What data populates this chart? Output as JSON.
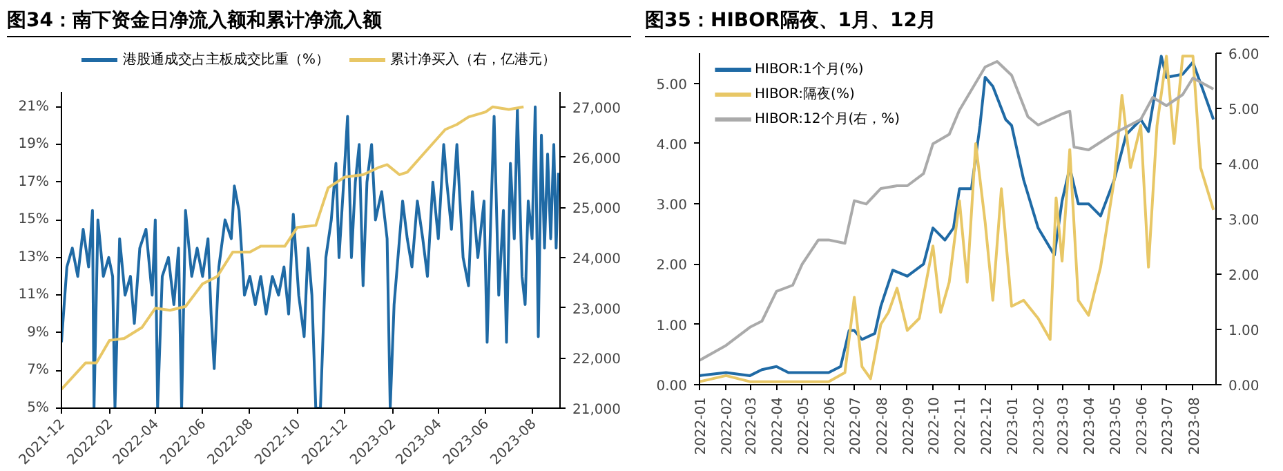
{
  "chart_data": [
    {
      "type": "line",
      "title": "图34：南下资金日净流入额和累计净流入额",
      "legend": "top",
      "grid": false,
      "xlim": [
        "2021-12-01",
        "2023-09-05"
      ],
      "xticks": [
        "2021-12",
        "2022-02",
        "2022-04",
        "2022-06",
        "2022-08",
        "2022-10",
        "2022-12",
        "2023-02",
        "2023-04",
        "2023-06",
        "2023-08"
      ],
      "ylim": [
        5,
        21.8
      ],
      "yticks": [
        {
          "value": 5,
          "label": "5%"
        },
        {
          "value": 7,
          "label": "7%"
        },
        {
          "value": 9,
          "label": "9%"
        },
        {
          "value": 11,
          "label": "11%"
        },
        {
          "value": 13,
          "label": "13%"
        },
        {
          "value": 15,
          "label": "15%"
        },
        {
          "value": 17,
          "label": "17%"
        },
        {
          "value": 19,
          "label": "19%"
        },
        {
          "value": 21,
          "label": "21%"
        }
      ],
      "y2lim": [
        21000,
        27300
      ],
      "y2ticks": [
        {
          "value": 21000,
          "label": "21,000"
        },
        {
          "value": 22000,
          "label": "22,000"
        },
        {
          "value": 23000,
          "label": "23,000"
        },
        {
          "value": 24000,
          "label": "24,000"
        },
        {
          "value": 25000,
          "label": "25,000"
        },
        {
          "value": 26000,
          "label": "26,000"
        },
        {
          "value": 27000,
          "label": "27,000"
        }
      ],
      "series": [
        {
          "name": "港股通成交占主板成交比重（%）",
          "color": "#1f6aa5",
          "x": [
            "2021-12-01",
            "2021-12-08",
            "2021-12-15",
            "2021-12-22",
            "2021-12-29",
            "2022-01-05",
            "2022-01-10",
            "2022-01-12",
            "2022-01-17",
            "2022-01-24",
            "2022-01-31",
            "2022-02-05",
            "2022-02-08",
            "2022-02-14",
            "2022-02-21",
            "2022-02-28",
            "2022-03-05",
            "2022-03-12",
            "2022-03-20",
            "2022-03-28",
            "2022-04-01",
            "2022-04-04",
            "2022-04-10",
            "2022-04-18",
            "2022-04-25",
            "2022-05-01",
            "2022-05-05",
            "2022-05-10",
            "2022-05-18",
            "2022-05-25",
            "2022-06-01",
            "2022-06-08",
            "2022-06-12",
            "2022-06-16",
            "2022-06-22",
            "2022-06-30",
            "2022-07-08",
            "2022-07-12",
            "2022-07-18",
            "2022-07-25",
            "2022-08-01",
            "2022-08-08",
            "2022-08-15",
            "2022-08-22",
            "2022-08-30",
            "2022-09-07",
            "2022-09-14",
            "2022-09-20",
            "2022-09-26",
            "2022-10-03",
            "2022-10-10",
            "2022-10-15",
            "2022-10-20",
            "2022-10-25",
            "2022-10-31",
            "2022-11-07",
            "2022-11-14",
            "2022-11-20",
            "2022-11-24",
            "2022-11-30",
            "2022-12-05",
            "2022-12-10",
            "2022-12-15",
            "2022-12-20",
            "2022-12-25",
            "2022-12-30",
            "2023-01-05",
            "2023-01-10",
            "2023-01-18",
            "2023-01-25",
            "2023-01-29",
            "2023-02-03",
            "2023-02-08",
            "2023-02-14",
            "2023-02-20",
            "2023-02-26",
            "2023-03-05",
            "2023-03-12",
            "2023-03-18",
            "2023-03-25",
            "2023-04-01",
            "2023-04-08",
            "2023-04-12",
            "2023-04-18",
            "2023-04-25",
            "2023-05-03",
            "2023-05-10",
            "2023-05-15",
            "2023-05-22",
            "2023-05-30",
            "2023-06-03",
            "2023-06-08",
            "2023-06-12",
            "2023-06-18",
            "2023-06-24",
            "2023-06-28",
            "2023-07-03",
            "2023-07-08",
            "2023-07-12",
            "2023-07-18",
            "2023-07-22",
            "2023-07-26",
            "2023-07-31",
            "2023-08-04",
            "2023-08-08",
            "2023-08-12",
            "2023-08-16",
            "2023-08-20",
            "2023-08-24",
            "2023-08-28",
            "2023-08-31",
            "2023-09-03"
          ],
          "values": [
            8.5,
            12.5,
            13.5,
            12,
            14.5,
            12.5,
            15.5,
            5,
            15,
            12,
            13,
            12,
            5,
            14,
            11,
            12,
            9.5,
            13.5,
            14.5,
            11,
            15,
            5,
            12,
            13,
            10.5,
            13.5,
            5,
            15.5,
            12,
            13.5,
            12,
            14,
            10,
            7.1,
            12.5,
            15,
            14,
            16.8,
            15.5,
            11,
            12,
            10.5,
            12,
            10,
            12,
            11,
            12.5,
            10,
            15.3,
            11,
            8.8,
            13.5,
            11,
            5,
            5,
            13,
            15,
            18,
            13,
            17,
            20.5,
            13,
            17,
            19,
            11.5,
            17,
            19,
            15,
            16.5,
            14,
            5,
            10.5,
            13,
            16,
            14,
            12.5,
            16,
            14,
            12,
            17,
            14,
            19,
            17,
            14.5,
            19,
            13,
            11.5,
            16.5,
            13,
            16,
            8.5,
            15.5,
            20.5,
            11,
            15.5,
            8.5,
            18,
            14,
            20.9,
            12,
            10.5,
            16,
            14,
            21,
            8.8,
            19.5,
            13.5,
            18.5,
            14,
            19,
            13.5,
            17.5
          ]
        },
        {
          "name": "累计净买入（右，亿港元）",
          "color": "#e8c766",
          "axis": "y2",
          "x": [
            "2021-12-01",
            "2022-01-01",
            "2022-01-15",
            "2022-02-01",
            "2022-02-20",
            "2022-03-15",
            "2022-04-01",
            "2022-04-20",
            "2022-05-10",
            "2022-06-01",
            "2022-06-20",
            "2022-07-10",
            "2022-08-01",
            "2022-08-15",
            "2022-09-15",
            "2022-10-01",
            "2022-10-25",
            "2022-11-10",
            "2022-12-01",
            "2022-12-25",
            "2023-01-15",
            "2023-01-25",
            "2023-02-10",
            "2023-02-20",
            "2023-03-15",
            "2023-04-10",
            "2023-04-25",
            "2023-05-10",
            "2023-06-01",
            "2023-06-10",
            "2023-07-01",
            "2023-07-20"
          ],
          "values": [
            21375,
            21900,
            21900,
            22350,
            22390,
            22610,
            22990,
            22950,
            23025,
            23475,
            23625,
            24110,
            24110,
            24225,
            24225,
            24600,
            24640,
            25390,
            25600,
            25650,
            25800,
            25850,
            25650,
            25700,
            26100,
            26550,
            26650,
            26800,
            26900,
            27000,
            26950,
            27000
          ]
        }
      ]
    },
    {
      "type": "line",
      "title": "图35：HIBOR隔夜、1月、12月",
      "legend": "top left",
      "grid": false,
      "xlim": [
        "2022-01-01",
        "2023-08-28"
      ],
      "xticks": [
        "2022-01",
        "2022-02",
        "2022-03",
        "2022-04",
        "2022-05",
        "2022-06",
        "2022-07",
        "2022-08",
        "2022-09",
        "2022-10",
        "2022-11",
        "2022-12",
        "2023-01",
        "2023-02",
        "2023-03",
        "2023-04",
        "2023-05",
        "2023-06",
        "2023-07",
        "2023-08"
      ],
      "ylim": [
        0,
        5.5
      ],
      "yticks": [
        {
          "value": 0,
          "label": "0.00"
        },
        {
          "value": 1,
          "label": "1.00"
        },
        {
          "value": 2,
          "label": "2.00"
        },
        {
          "value": 3,
          "label": "3.00"
        },
        {
          "value": 4,
          "label": "4.00"
        },
        {
          "value": 5,
          "label": "5.00"
        }
      ],
      "y2lim": [
        0,
        6
      ],
      "y2ticks": [
        {
          "value": 0,
          "label": "0.00"
        },
        {
          "value": 1,
          "label": "1.00"
        },
        {
          "value": 2,
          "label": "2.00"
        },
        {
          "value": 3,
          "label": "3.00"
        },
        {
          "value": 4,
          "label": "4.00"
        },
        {
          "value": 5,
          "label": "5.00"
        },
        {
          "value": 6,
          "label": "6.00"
        }
      ],
      "series": [
        {
          "name": "HIBOR:1个月(%)",
          "color": "#1f6aa5",
          "x": [
            "2022-01-01",
            "2022-02-01",
            "2022-03-01",
            "2022-03-15",
            "2022-04-01",
            "2022-04-15",
            "2022-05-01",
            "2022-06-01",
            "2022-06-15",
            "2022-06-25",
            "2022-07-01",
            "2022-07-10",
            "2022-07-25",
            "2022-08-01",
            "2022-08-15",
            "2022-09-01",
            "2022-09-20",
            "2022-10-01",
            "2022-10-15",
            "2022-10-25",
            "2022-11-01",
            "2022-11-15",
            "2022-11-25",
            "2022-12-01",
            "2022-12-10",
            "2022-12-25",
            "2023-01-01",
            "2023-01-15",
            "2023-02-01",
            "2023-02-20",
            "2023-03-01",
            "2023-03-10",
            "2023-03-20",
            "2023-04-01",
            "2023-04-15",
            "2023-05-01",
            "2023-05-15",
            "2023-06-01",
            "2023-06-10",
            "2023-06-25",
            "2023-07-01",
            "2023-07-20",
            "2023-08-01",
            "2023-08-15",
            "2023-08-25"
          ],
          "values": [
            0.15,
            0.2,
            0.15,
            0.25,
            0.3,
            0.2,
            0.2,
            0.2,
            0.3,
            0.9,
            0.9,
            0.75,
            0.85,
            1.3,
            1.9,
            1.8,
            2.0,
            2.6,
            2.4,
            2.6,
            3.25,
            3.25,
            4.3,
            5.1,
            4.95,
            4.4,
            4.3,
            3.4,
            2.6,
            2.15,
            3.05,
            3.6,
            3.0,
            3.0,
            2.8,
            3.4,
            4.15,
            4.4,
            4.2,
            5.45,
            5.1,
            5.15,
            5.35,
            4.8,
            4.4
          ]
        },
        {
          "name": "HIBOR:隔夜(%)",
          "color": "#e8c766",
          "x": [
            "2022-01-01",
            "2022-02-01",
            "2022-03-01",
            "2022-04-01",
            "2022-05-01",
            "2022-06-01",
            "2022-06-20",
            "2022-07-01",
            "2022-07-10",
            "2022-07-20",
            "2022-08-01",
            "2022-08-10",
            "2022-08-20",
            "2022-09-01",
            "2022-09-15",
            "2022-10-01",
            "2022-10-10",
            "2022-10-20",
            "2022-11-01",
            "2022-11-10",
            "2022-11-20",
            "2022-12-01",
            "2022-12-10",
            "2022-12-20",
            "2023-01-01",
            "2023-01-15",
            "2023-02-01",
            "2023-02-15",
            "2023-02-22",
            "2023-03-01",
            "2023-03-10",
            "2023-03-20",
            "2023-04-01",
            "2023-04-15",
            "2023-05-01",
            "2023-05-10",
            "2023-05-20",
            "2023-06-01",
            "2023-06-10",
            "2023-06-20",
            "2023-07-01",
            "2023-07-10",
            "2023-07-20",
            "2023-08-01",
            "2023-08-10",
            "2023-08-25"
          ],
          "values": [
            0.05,
            0.15,
            0.05,
            0.05,
            0.05,
            0.05,
            0.2,
            1.45,
            0.3,
            0.1,
            1.0,
            1.2,
            1.6,
            0.9,
            1.1,
            2.3,
            1.2,
            1.7,
            3.05,
            1.7,
            4.0,
            2.7,
            1.4,
            3.25,
            1.3,
            1.4,
            1.1,
            0.75,
            3.1,
            2.05,
            3.9,
            1.4,
            1.15,
            1.95,
            3.4,
            4.8,
            3.6,
            4.3,
            1.95,
            4.3,
            5.45,
            4.0,
            5.45,
            5.45,
            3.6,
            2.9
          ]
        },
        {
          "name": "HIBOR:12个月(右，%)",
          "color": "#aaaaaa",
          "axis": "y2",
          "x": [
            "2022-01-01",
            "2022-02-01",
            "2022-03-01",
            "2022-03-15",
            "2022-04-01",
            "2022-04-20",
            "2022-05-01",
            "2022-05-20",
            "2022-06-01",
            "2022-06-20",
            "2022-07-01",
            "2022-07-15",
            "2022-08-01",
            "2022-08-20",
            "2022-09-01",
            "2022-09-20",
            "2022-10-01",
            "2022-10-20",
            "2022-11-01",
            "2022-12-01",
            "2022-12-15",
            "2023-01-01",
            "2023-01-20",
            "2023-02-01",
            "2023-03-01",
            "2023-03-10",
            "2023-03-15",
            "2023-04-01",
            "2023-05-01",
            "2023-06-01",
            "2023-06-15",
            "2023-07-01",
            "2023-07-20",
            "2023-08-01",
            "2023-08-25"
          ],
          "values": [
            0.44,
            0.71,
            1.04,
            1.15,
            1.69,
            1.8,
            2.18,
            2.62,
            2.62,
            2.56,
            3.33,
            3.27,
            3.55,
            3.6,
            3.6,
            3.82,
            4.36,
            4.53,
            4.97,
            5.75,
            5.85,
            5.6,
            4.85,
            4.7,
            4.9,
            4.95,
            4.3,
            4.25,
            4.55,
            4.8,
            5.2,
            5.05,
            5.25,
            5.55,
            5.35
          ]
        }
      ]
    }
  ]
}
